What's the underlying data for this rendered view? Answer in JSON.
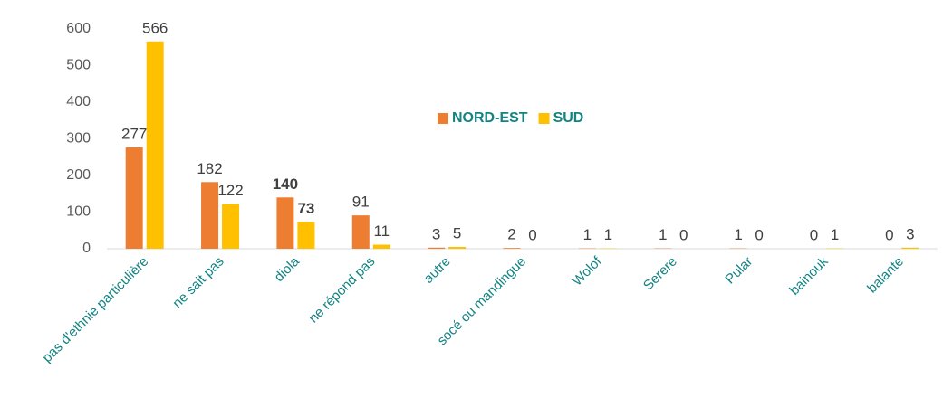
{
  "chart_data": {
    "type": "bar",
    "categories": [
      "pas d'ethnie particulière",
      "ne sait pas",
      "diola",
      "ne répond pas",
      "autre",
      "socé ou mandingue",
      "Wolof",
      "Serere",
      "Pular",
      "bainouk",
      "balante"
    ],
    "series": [
      {
        "name": "NORD-EST",
        "color": "#ED7D31",
        "values": [
          277,
          182,
          140,
          91,
          3,
          2,
          1,
          1,
          1,
          0,
          0
        ]
      },
      {
        "name": "SUD",
        "color": "#FFC000",
        "values": [
          566,
          122,
          73,
          11,
          5,
          0,
          1,
          0,
          0,
          1,
          3
        ]
      }
    ],
    "ylim": [
      0,
      600
    ],
    "yticks": [
      0,
      100,
      200,
      300,
      400,
      500,
      600
    ],
    "grid": false,
    "legend": "center"
  }
}
